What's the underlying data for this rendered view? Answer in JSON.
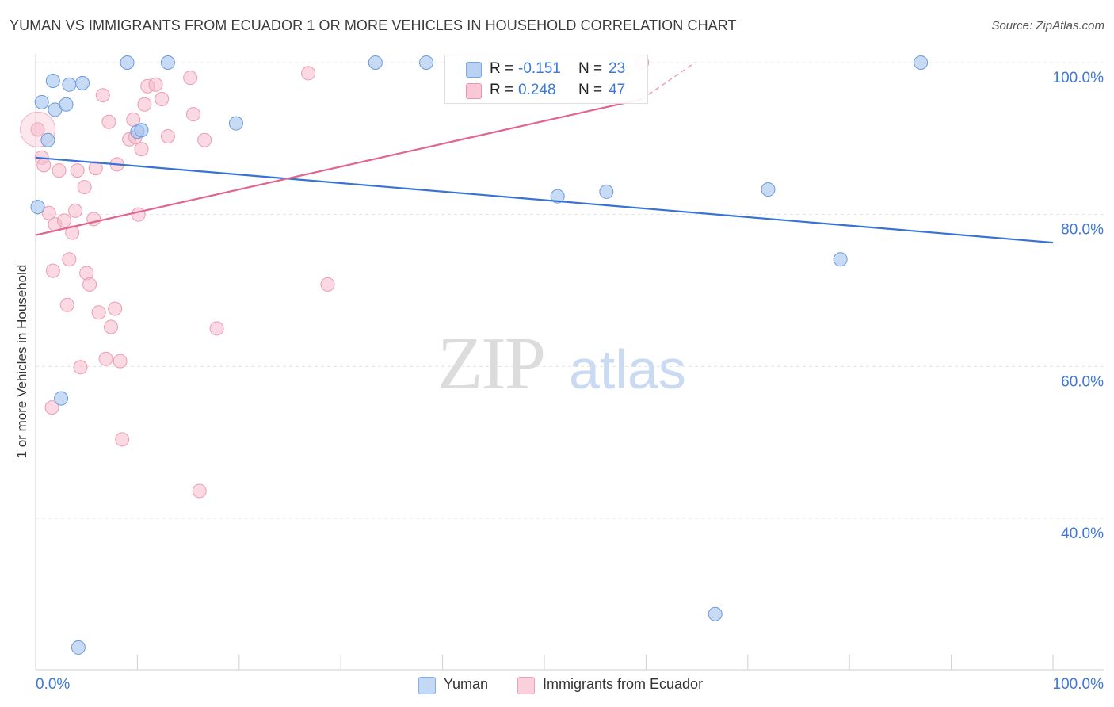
{
  "header": {
    "title": "YUMAN VS IMMIGRANTS FROM ECUADOR 1 OR MORE VEHICLES IN HOUSEHOLD CORRELATION CHART",
    "source": "Source: ZipAtlas.com"
  },
  "watermark": {
    "zip": "ZIP",
    "atlas": "atlas"
  },
  "legend_top": {
    "rows": [
      {
        "r_label": "R =",
        "r_value": "-0.151",
        "n_label": "N =",
        "n_value": "23"
      },
      {
        "r_label": "R =",
        "r_value": "0.248",
        "n_label": "N =",
        "n_value": "47"
      }
    ]
  },
  "chart_data": {
    "type": "scatter",
    "title": "YUMAN VS IMMIGRANTS FROM ECUADOR 1 OR MORE VEHICLES IN HOUSEHOLD CORRELATION CHART",
    "xlabel": "",
    "ylabel": "1 or more Vehicles in Household",
    "xlim": [
      0,
      100
    ],
    "ylim": [
      20,
      104
    ],
    "x_tick_labels": [
      "0.0%",
      "100.0%"
    ],
    "y_ticks": [
      40,
      60,
      80,
      100
    ],
    "y_tick_labels": [
      "40.0%",
      "60.0%",
      "80.0%",
      "100.0%"
    ],
    "grid": true,
    "legend_position": "bottom",
    "colors": {
      "yuman": "#a9c8f0",
      "yuman_line": "#3872d4",
      "ecuador": "#f6b9cb",
      "ecuador_line": "#e2658f",
      "tick_label": "#3d78d8"
    },
    "series": [
      {
        "name": "Yuman",
        "r": -0.151,
        "n": 23,
        "trend": {
          "x": [
            0,
            100
          ],
          "y": [
            87.5,
            76.3
          ]
        },
        "points": [
          {
            "x": 0.2,
            "y": 81.0
          },
          {
            "x": 0.6,
            "y": 94.8
          },
          {
            "x": 1.2,
            "y": 89.8
          },
          {
            "x": 1.7,
            "y": 97.6
          },
          {
            "x": 1.9,
            "y": 93.8
          },
          {
            "x": 3.0,
            "y": 94.5
          },
          {
            "x": 3.3,
            "y": 97.1
          },
          {
            "x": 4.6,
            "y": 97.3
          },
          {
            "x": 9.0,
            "y": 100.0
          },
          {
            "x": 10.0,
            "y": 90.9
          },
          {
            "x": 10.4,
            "y": 91.1
          },
          {
            "x": 13.0,
            "y": 100.0
          },
          {
            "x": 19.7,
            "y": 92.0
          },
          {
            "x": 33.4,
            "y": 100.0
          },
          {
            "x": 38.4,
            "y": 100.0
          },
          {
            "x": 51.3,
            "y": 82.4
          },
          {
            "x": 56.1,
            "y": 83.0
          },
          {
            "x": 72.0,
            "y": 83.3
          },
          {
            "x": 79.1,
            "y": 74.1
          },
          {
            "x": 87.0,
            "y": 100.0
          },
          {
            "x": 2.5,
            "y": 55.8
          },
          {
            "x": 66.8,
            "y": 27.4
          },
          {
            "x": 4.2,
            "y": 23.0
          }
        ]
      },
      {
        "name": "Immigrants from Ecuador",
        "r": 0.248,
        "n": 47,
        "trend": {
          "x": [
            0,
            59.6
          ],
          "y": [
            77.3,
            95.2
          ]
        },
        "trend_dashed": {
          "x": [
            59.6,
            64.8
          ],
          "y": [
            95.2,
            100.0
          ]
        },
        "points": [
          {
            "x": 0.2,
            "y": 91.2
          },
          {
            "x": 0.6,
            "y": 87.5
          },
          {
            "x": 0.8,
            "y": 86.5
          },
          {
            "x": 1.3,
            "y": 80.2
          },
          {
            "x": 1.7,
            "y": 72.6
          },
          {
            "x": 1.9,
            "y": 78.7
          },
          {
            "x": 1.6,
            "y": 54.6
          },
          {
            "x": 2.3,
            "y": 85.8
          },
          {
            "x": 2.8,
            "y": 79.2
          },
          {
            "x": 3.1,
            "y": 68.1
          },
          {
            "x": 3.3,
            "y": 74.1
          },
          {
            "x": 3.6,
            "y": 77.6
          },
          {
            "x": 3.9,
            "y": 80.5
          },
          {
            "x": 4.1,
            "y": 85.8
          },
          {
            "x": 4.4,
            "y": 59.9
          },
          {
            "x": 4.8,
            "y": 83.6
          },
          {
            "x": 5.0,
            "y": 72.3
          },
          {
            "x": 5.3,
            "y": 70.8
          },
          {
            "x": 5.7,
            "y": 79.4
          },
          {
            "x": 5.9,
            "y": 86.1
          },
          {
            "x": 6.2,
            "y": 67.1
          },
          {
            "x": 6.6,
            "y": 95.7
          },
          {
            "x": 6.9,
            "y": 61.0
          },
          {
            "x": 7.2,
            "y": 92.2
          },
          {
            "x": 7.4,
            "y": 65.2
          },
          {
            "x": 7.8,
            "y": 67.6
          },
          {
            "x": 8.0,
            "y": 86.6
          },
          {
            "x": 8.3,
            "y": 60.7
          },
          {
            "x": 8.5,
            "y": 50.4
          },
          {
            "x": 9.2,
            "y": 89.9
          },
          {
            "x": 9.6,
            "y": 92.5
          },
          {
            "x": 9.8,
            "y": 90.2
          },
          {
            "x": 10.1,
            "y": 80.0
          },
          {
            "x": 10.4,
            "y": 88.6
          },
          {
            "x": 10.7,
            "y": 94.5
          },
          {
            "x": 11.0,
            "y": 96.9
          },
          {
            "x": 11.8,
            "y": 97.1
          },
          {
            "x": 12.4,
            "y": 95.2
          },
          {
            "x": 13.0,
            "y": 90.3
          },
          {
            "x": 15.2,
            "y": 98.0
          },
          {
            "x": 15.5,
            "y": 93.2
          },
          {
            "x": 16.1,
            "y": 43.6
          },
          {
            "x": 16.6,
            "y": 89.8
          },
          {
            "x": 17.8,
            "y": 65.0
          },
          {
            "x": 26.8,
            "y": 98.6
          },
          {
            "x": 28.7,
            "y": 70.8
          },
          {
            "x": 59.6,
            "y": 100.0
          }
        ]
      }
    ]
  },
  "legend_bottom": {
    "items": [
      {
        "label": "Yuman"
      },
      {
        "label": "Immigrants from Ecuador"
      }
    ]
  }
}
